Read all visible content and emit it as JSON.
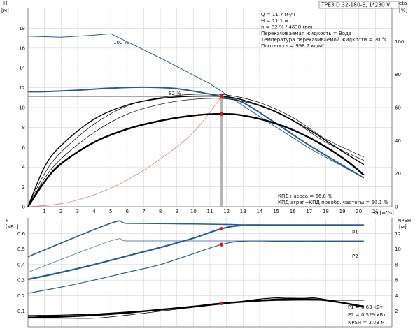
{
  "title": "TPE3 D 32-180-S, 1*230 V",
  "upper": {
    "y_left_label": "H",
    "y_left_unit": "[м]",
    "y_right_label": "eta",
    "y_right_unit": "[%]",
    "x_label": "Q [м³/ч]",
    "x_ticks": [
      "1",
      "2",
      "3",
      "4",
      "5",
      "6",
      "7",
      "8",
      "9",
      "10",
      "11",
      "12",
      "13",
      "14",
      "15",
      "16",
      "17",
      "18",
      "19",
      "20",
      "21"
    ],
    "y_left_ticks": [
      "0",
      "2",
      "4",
      "6",
      "8",
      "10",
      "12",
      "14",
      "16",
      "18"
    ],
    "y_right_ticks": [
      "0",
      "20",
      "40",
      "60",
      "80",
      "100"
    ],
    "curve_labels": [
      "100 %",
      "82 %"
    ],
    "info_lines": [
      "Q = 11.7 м³/ч",
      "H = 11.1 м",
      "n = 82 % / 4638 rpm",
      "Перекачиваемая жидкость = Вода",
      "Температура перекачиваемой жидкости = 20 °C",
      "Плотность = 998.2 кг/м³"
    ],
    "efficiency_lines": [
      "КПД насоса = 66.8 %",
      "КПД агрег+КПД преобр. частоты = 56.1 %"
    ]
  },
  "lower": {
    "y_left_label": "P",
    "y_left_unit": "[кВт]",
    "y_right_label": "NPSH",
    "y_right_unit": "[м]",
    "y_left_ticks": [
      "0.1",
      "0.2",
      "0.3",
      "0.4",
      "0.5",
      "0.6"
    ],
    "y_right_ticks": [
      "2",
      "4",
      "6",
      "8",
      "10",
      "12"
    ],
    "curve_labels": [
      "P1",
      "P2"
    ],
    "info_lines": [
      "P1 = 0.63 кВт",
      "P2 = 0.529 кВт",
      "NPSH = 3.03 м"
    ]
  },
  "colors": {
    "curve_blue": "#2a5d8f",
    "curve_blue_light": "#5b84b8",
    "curve_black": "#000000",
    "system_curve": "#e87c6c",
    "duty_point": "#f5a300",
    "marker_red": "#e8141c",
    "grid": "#d6d6d6",
    "axis": "#666666"
  },
  "chart_data": [
    {
      "type": "line",
      "title": "TPE3 D 32-180-S, 1*230 V",
      "xlabel": "Q [м³/ч]",
      "ylabel": "H [м]",
      "y2label": "eta [%]",
      "xlim": [
        0,
        22
      ],
      "ylim": [
        0,
        20
      ],
      "y2lim": [
        0,
        120
      ],
      "duty_point": {
        "x": 11.7,
        "y": 11.1
      },
      "series": [
        {
          "name": "100 %",
          "axis": "H",
          "x": [
            0,
            2,
            4,
            5,
            8,
            11,
            14,
            17,
            20.3
          ],
          "y": [
            17.2,
            17.1,
            17.3,
            17.45,
            15.0,
            12.4,
            9.1,
            5.9,
            2.9
          ]
        },
        {
          "name": "82 %",
          "axis": "H",
          "x": [
            0,
            1,
            3,
            5,
            7,
            9,
            11,
            11.7,
            13,
            15,
            17,
            20.3
          ],
          "y": [
            11.6,
            11.6,
            11.75,
            11.95,
            12.05,
            11.9,
            11.35,
            11.1,
            10.5,
            8.4,
            6.2,
            2.9
          ]
        },
        {
          "axis": "H",
          "x": [
            0,
            2,
            4,
            6,
            8,
            10,
            11.7
          ],
          "y": [
            0,
            0.3,
            1.2,
            2.7,
            4.8,
            7.5,
            11.1
          ]
        },
        {
          "axis": "eta",
          "x": [
            0,
            1,
            2,
            4,
            6,
            8,
            10,
            12,
            14,
            16,
            18,
            20.3
          ],
          "y": [
            0,
            20,
            33,
            50,
            61,
            66,
            68,
            67.6,
            63,
            54,
            41,
            30
          ]
        },
        {
          "axis": "eta",
          "x": [
            0,
            1,
            2,
            4,
            6,
            8,
            10,
            12,
            14,
            16,
            18,
            20.3
          ],
          "y": [
            0,
            17,
            29,
            45,
            56,
            62,
            65,
            65.3,
            61,
            52,
            39,
            28
          ]
        },
        {
          "axis": "eta",
          "x": [
            0,
            1,
            2,
            4,
            6,
            8,
            10,
            11.7,
            13,
            15,
            17,
            19,
            20.3
          ],
          "y": [
            0,
            24,
            37,
            53,
            61.5,
            65.5,
            66.9,
            66.8,
            64.5,
            57.5,
            46.5,
            33.5,
            25.5
          ]
        },
        {
          "axis": "eta",
          "x": [
            0,
            1,
            2,
            4,
            6,
            8,
            10,
            11.7,
            13,
            15,
            17,
            19,
            20.3
          ],
          "y": [
            0,
            15,
            26,
            39,
            47,
            52,
            55.2,
            56.1,
            55.2,
            50.3,
            41.8,
            29.7,
            19.2
          ]
        }
      ],
      "markers": [
        {
          "axis": "eta",
          "x": 11.7,
          "y": 66.8
        },
        {
          "axis": "eta",
          "x": 11.7,
          "y": 56.1
        }
      ]
    },
    {
      "type": "line",
      "xlabel": "Q [м³/ч]",
      "ylabel": "P [кВт]",
      "y2label": "NPSH [м]",
      "xlim": [
        0,
        22
      ],
      "ylim": [
        0.0,
        0.7
      ],
      "y2lim": [
        0,
        14
      ],
      "series": [
        {
          "name": "P1",
          "axis": "P",
          "x": [
            0,
            5,
            6,
            9,
            12,
            13,
            15,
            18,
            20.3
          ],
          "y": [
            0.45,
            0.665,
            0.665,
            0.662,
            0.658,
            0.655,
            0.655,
            0.655,
            0.655
          ]
        },
        {
          "name": "P2",
          "axis": "P",
          "x": [
            0,
            5,
            6,
            9,
            12,
            13,
            15,
            18,
            20.3
          ],
          "y": [
            0.35,
            0.552,
            0.552,
            0.552,
            0.552,
            0.552,
            0.552,
            0.552,
            0.552
          ]
        },
        {
          "axis": "P",
          "x": [
            0,
            2,
            4,
            6,
            8,
            10,
            11.7,
            13,
            15,
            18,
            20.3
          ],
          "y": [
            0.305,
            0.35,
            0.4,
            0.455,
            0.51,
            0.57,
            0.63,
            0.652,
            0.652,
            0.652,
            0.652
          ]
        },
        {
          "axis": "P",
          "x": [
            0,
            2,
            4,
            6,
            8,
            10,
            11.7,
            13,
            15,
            18,
            20.3
          ],
          "y": [
            0.215,
            0.255,
            0.3,
            0.35,
            0.4,
            0.47,
            0.529,
            0.55,
            0.55,
            0.55,
            0.55
          ]
        },
        {
          "axis": "P",
          "x": [
            0,
            2,
            4,
            6,
            8,
            10,
            12,
            14,
            16,
            17,
            18,
            20.3
          ],
          "y": [
            0.072,
            0.075,
            0.082,
            0.095,
            0.11,
            0.128,
            0.15,
            0.178,
            0.19,
            0.188,
            0.175,
            0.125
          ]
        },
        {
          "axis": "P",
          "x": [
            0,
            2,
            4,
            6,
            8,
            10,
            12,
            14,
            16,
            18,
            20.3
          ],
          "y": [
            0.055,
            0.055,
            0.055,
            0.075,
            0.1,
            0.125,
            0.15,
            0.165,
            0.17,
            0.17,
            0.17
          ]
        },
        {
          "axis": "P",
          "x": [
            0,
            2,
            4,
            6,
            8,
            10,
            11.7,
            14,
            16,
            18,
            20.3
          ],
          "y": [
            0.06,
            0.065,
            0.075,
            0.09,
            0.11,
            0.13,
            0.15,
            0.168,
            0.18,
            0.17,
            0.13
          ]
        }
      ],
      "markers": [
        {
          "axis": "P",
          "x": 11.7,
          "y": 0.63
        },
        {
          "axis": "P",
          "x": 11.7,
          "y": 0.529
        },
        {
          "axis": "P",
          "x": 11.7,
          "y": 0.151
        }
      ]
    }
  ]
}
